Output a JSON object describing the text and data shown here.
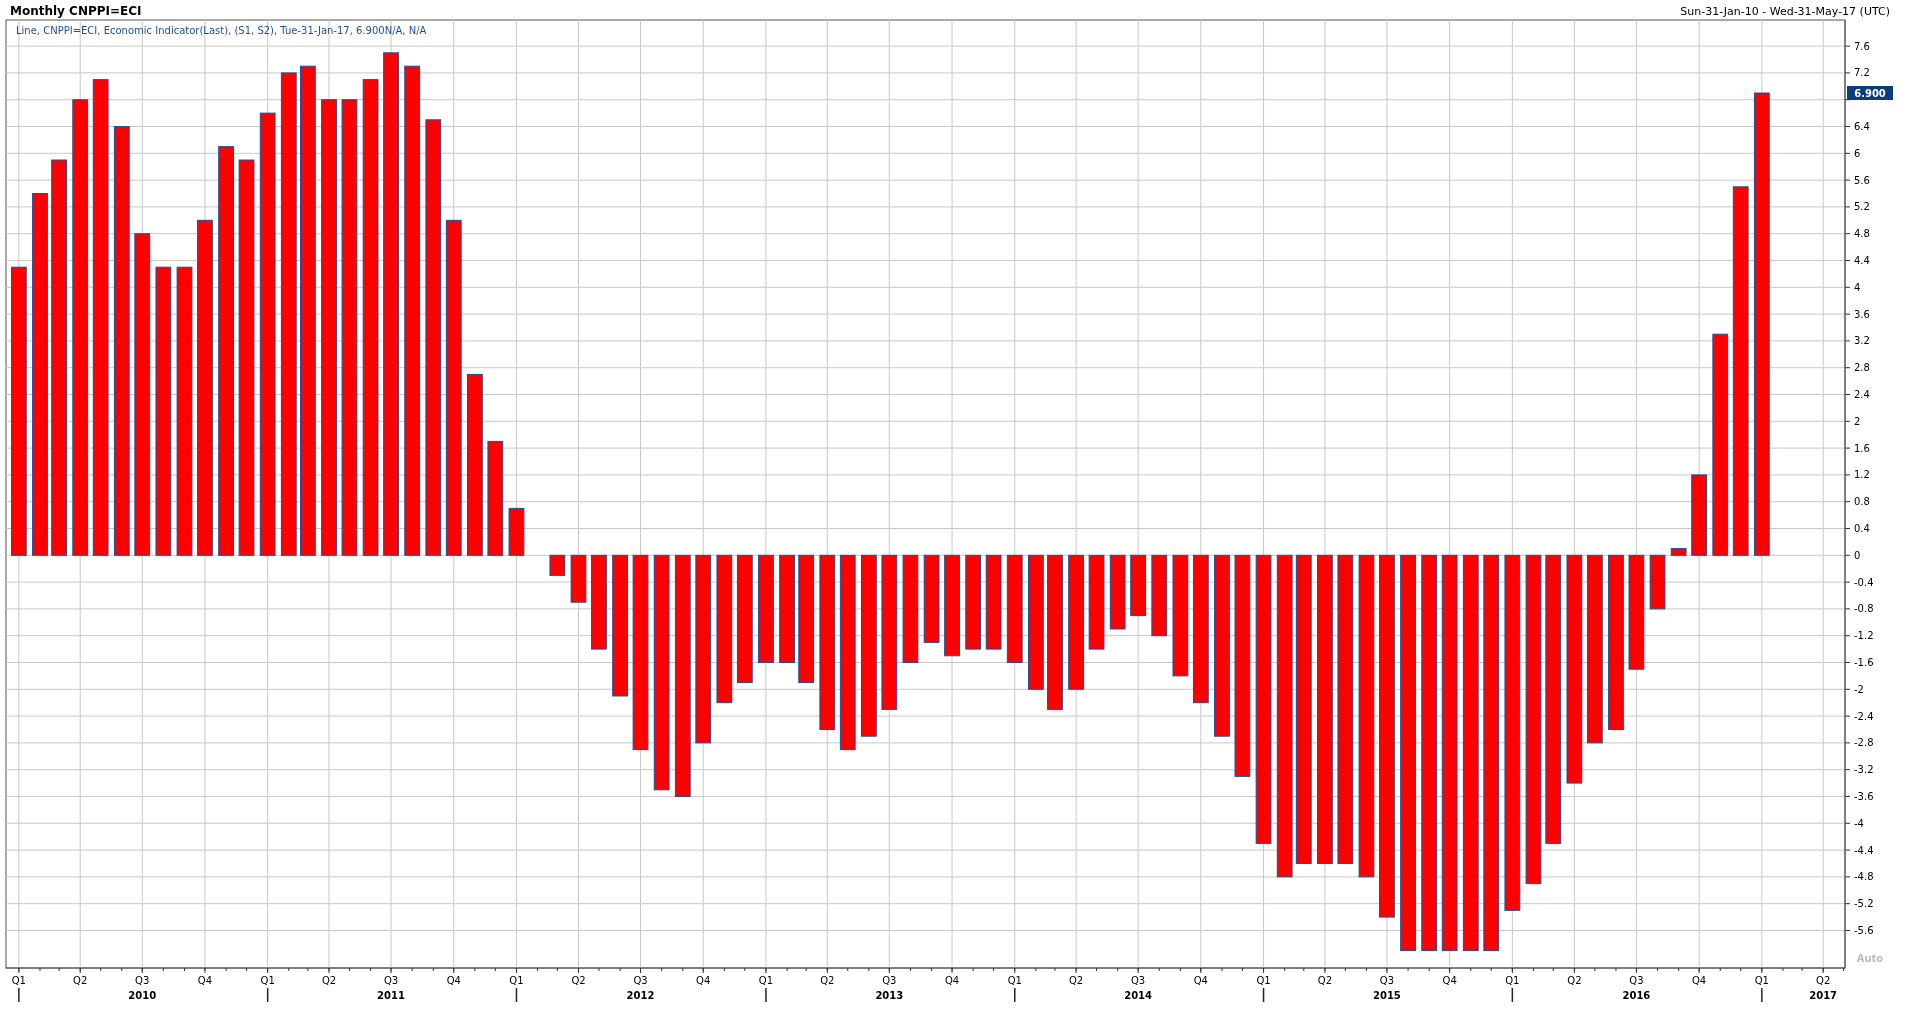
{
  "chart_data": {
    "type": "bar",
    "title": "Monthly CNPPI=ECI",
    "subtitle": "Sun-31-Jan-10 - Wed-31-May-17 (UTC)",
    "annotations": [
      "Line, CNPPI=ECI, Economic Indicator(Last), (S1, S2), Tue-31-Jan-17, 6.900N/A, N/A",
      "6.900",
      "Auto"
    ],
    "x": [
      "2010-01",
      "2010-02",
      "2010-03",
      "2010-04",
      "2010-05",
      "2010-06",
      "2010-07",
      "2010-08",
      "2010-09",
      "2010-10",
      "2010-11",
      "2010-12",
      "2011-01",
      "2011-02",
      "2011-03",
      "2011-04",
      "2011-05",
      "2011-06",
      "2011-07",
      "2011-08",
      "2011-09",
      "2011-10",
      "2011-11",
      "2011-12",
      "2012-01",
      "2012-02",
      "2012-03",
      "2012-04",
      "2012-05",
      "2012-06",
      "2012-07",
      "2012-08",
      "2012-09",
      "2012-10",
      "2012-11",
      "2012-12",
      "2013-01",
      "2013-02",
      "2013-03",
      "2013-04",
      "2013-05",
      "2013-06",
      "2013-07",
      "2013-08",
      "2013-09",
      "2013-10",
      "2013-11",
      "2013-12",
      "2014-01",
      "2014-02",
      "2014-03",
      "2014-04",
      "2014-05",
      "2014-06",
      "2014-07",
      "2014-08",
      "2014-09",
      "2014-10",
      "2014-11",
      "2014-12",
      "2015-01",
      "2015-02",
      "2015-03",
      "2015-04",
      "2015-05",
      "2015-06",
      "2015-07",
      "2015-08",
      "2015-09",
      "2015-10",
      "2015-11",
      "2015-12",
      "2016-01",
      "2016-02",
      "2016-03",
      "2016-04",
      "2016-05",
      "2016-06",
      "2016-07",
      "2016-08",
      "2016-09",
      "2016-10",
      "2016-11",
      "2016-12",
      "2017-01"
    ],
    "values": [
      4.3,
      5.4,
      5.9,
      6.8,
      7.1,
      6.4,
      4.8,
      4.3,
      4.3,
      5.0,
      6.1,
      5.9,
      6.6,
      7.2,
      7.3,
      6.8,
      6.8,
      7.1,
      7.5,
      7.3,
      6.5,
      5.0,
      2.7,
      1.7,
      0.7,
      0.0,
      -0.3,
      -0.7,
      -1.4,
      -2.1,
      -2.9,
      -3.5,
      -3.6,
      -2.8,
      -2.2,
      -1.9,
      -1.6,
      -1.6,
      -1.9,
      -2.6,
      -2.9,
      -2.7,
      -2.3,
      -1.6,
      -1.3,
      -1.5,
      -1.4,
      -1.4,
      -1.6,
      -2.0,
      -2.3,
      -2.0,
      -1.4,
      -1.1,
      -0.9,
      -1.2,
      -1.8,
      -2.2,
      -2.7,
      -3.3,
      -4.3,
      -4.8,
      -4.6,
      -4.6,
      -4.6,
      -4.8,
      -5.4,
      -5.9,
      -5.9,
      -5.9,
      -5.9,
      -5.9,
      -5.3,
      -4.9,
      -4.3,
      -3.4,
      -2.8,
      -2.6,
      -1.7,
      -0.8,
      0.1,
      1.2,
      3.3,
      5.5,
      6.9
    ],
    "color": "#ff0000",
    "xlim": [
      "2009-12-19",
      "2017-05-03"
    ],
    "xticks": [
      {
        "value": "2010-01-01",
        "label": "Q1"
      },
      {
        "value": "2010-04-01",
        "label": "Q2"
      },
      {
        "value": "2010-07-01",
        "label": "Q3\n2010"
      },
      {
        "value": "2010-10-01",
        "label": "Q4"
      },
      {
        "value": "2011-01-01",
        "label": "Q1"
      },
      {
        "value": "2011-04-01",
        "label": "Q2"
      },
      {
        "value": "2011-07-01",
        "label": "Q3\n2011"
      },
      {
        "value": "2011-10-01",
        "label": "Q4"
      },
      {
        "value": "2012-01-01",
        "label": "Q1"
      },
      {
        "value": "2012-04-01",
        "label": "Q2"
      },
      {
        "value": "2012-07-01",
        "label": "Q3\n2012"
      },
      {
        "value": "2012-10-01",
        "label": "Q4"
      },
      {
        "value": "2013-01-01",
        "label": "Q1"
      },
      {
        "value": "2013-04-01",
        "label": "Q2"
      },
      {
        "value": "2013-07-01",
        "label": "Q3\n2013"
      },
      {
        "value": "2013-10-01",
        "label": "Q4"
      },
      {
        "value": "2014-01-01",
        "label": "Q1"
      },
      {
        "value": "2014-04-01",
        "label": "Q2"
      },
      {
        "value": "2014-07-01",
        "label": "Q3\n2014"
      },
      {
        "value": "2014-10-01",
        "label": "Q4"
      },
      {
        "value": "2015-01-01",
        "label": "Q1"
      },
      {
        "value": "2015-04-01",
        "label": "Q2"
      },
      {
        "value": "2015-07-01",
        "label": "Q3\n2015"
      },
      {
        "value": "2015-10-01",
        "label": "Q4"
      },
      {
        "value": "2016-01-01",
        "label": "Q1"
      },
      {
        "value": "2016-04-01",
        "label": "Q2"
      },
      {
        "value": "2016-07-01",
        "label": "Q3\n2016"
      },
      {
        "value": "2016-10-01",
        "label": "Q4"
      },
      {
        "value": "2017-01-01",
        "label": "Q1"
      },
      {
        "value": "2017-04-01",
        "label": "Q2\n2017"
      }
    ],
    "ylim": [
      -6.16,
      7.96
    ],
    "yticks": [
      -5.6,
      -5.2,
      -4.8,
      -4.4,
      -4,
      -3.6,
      -3.2,
      -2.8,
      -2.4,
      -2,
      -1.6,
      -1.2,
      -0.8,
      -0.4,
      0,
      0.4,
      0.8,
      1.2,
      1.6,
      2,
      2.4,
      2.8,
      3.2,
      3.6,
      4,
      4.4,
      4.8,
      5.2,
      5.6,
      6,
      6.4,
      {
        "value": 6.8,
        "label": null
      },
      7.2,
      7.6
    ],
    "grid": true
  }
}
